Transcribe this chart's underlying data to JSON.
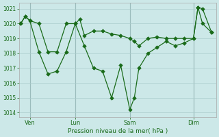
{
  "line1_x": [
    0,
    0.5,
    1,
    2,
    3,
    4,
    5,
    6,
    6.5,
    7,
    8,
    9,
    10,
    11,
    12,
    12.5,
    13,
    14,
    15,
    16,
    17,
    18,
    19,
    19.5,
    20,
    21
  ],
  "line1_y": [
    1020.0,
    1020.5,
    1020.2,
    1020.0,
    1018.1,
    1018.1,
    1020.0,
    1020.0,
    1020.3,
    1019.2,
    1019.5,
    1019.5,
    1019.3,
    1019.2,
    1019.0,
    1018.8,
    1018.5,
    1019.0,
    1019.1,
    1019.0,
    1019.0,
    1019.0,
    1019.0,
    1021.1,
    1021.0,
    1019.4
  ],
  "line2_x": [
    0,
    0.5,
    1,
    2,
    3,
    4,
    5,
    6,
    7,
    8,
    9,
    10,
    11,
    12,
    12.5,
    13,
    14,
    15,
    16,
    17,
    18,
    19,
    19.5,
    20,
    21
  ],
  "line2_y": [
    1020.0,
    1020.5,
    1020.2,
    1018.1,
    1016.6,
    1016.8,
    1018.1,
    1020.0,
    1018.5,
    1017.0,
    1016.8,
    1015.0,
    1017.2,
    1014.2,
    1015.0,
    1017.0,
    1018.0,
    1018.4,
    1018.8,
    1018.5,
    1018.7,
    1019.0,
    1021.1,
    1020.0,
    1019.4
  ],
  "bgcolor": "#cce8e8",
  "grid_color": "#aacccc",
  "line_color": "#1a6b1a",
  "xlabel": "Pression niveau de la mer( hPa )",
  "xtick_labels": [
    "Ven",
    "Lun",
    "Sam",
    "Dim"
  ],
  "xtick_positions": [
    1,
    6,
    12,
    19
  ],
  "vline_x": [
    1,
    6,
    12,
    19
  ],
  "ylim": [
    1013.7,
    1021.4
  ],
  "xlim": [
    -0.2,
    21.5
  ],
  "yticks": [
    1014,
    1015,
    1016,
    1017,
    1018,
    1019,
    1020,
    1021
  ],
  "tick_color": "#1a6b1a",
  "spine_color": "#aaaaaa",
  "markersize": 2.8,
  "linewidth": 0.9
}
